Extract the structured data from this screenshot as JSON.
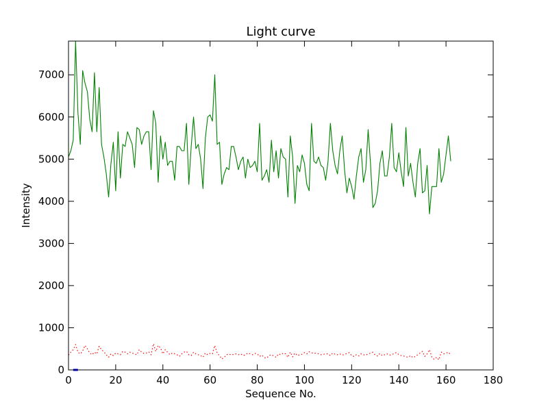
{
  "chart_data": {
    "type": "line",
    "title": "Light curve",
    "xlabel": "Sequence No.",
    "ylabel": "Intensity",
    "xlim": [
      0,
      180
    ],
    "ylim": [
      0,
      7800
    ],
    "xticks": [
      "0",
      "20",
      "40",
      "60",
      "80",
      "100",
      "120",
      "140",
      "160",
      "180"
    ],
    "yticks": [
      "0",
      "1000",
      "2000",
      "3000",
      "4000",
      "5000",
      "6000",
      "7000"
    ],
    "grid": false,
    "legend": "none",
    "series": [
      {
        "color": "#008000",
        "style": "solid",
        "x": [
          0,
          1,
          2,
          3,
          4,
          5,
          6,
          7,
          8,
          9,
          10,
          11,
          12,
          13,
          14,
          15,
          16,
          17,
          18,
          19,
          20,
          21,
          22,
          23,
          24,
          25,
          26,
          27,
          28,
          29,
          30,
          31,
          32,
          33,
          34,
          35,
          36,
          37,
          38,
          39,
          40,
          41,
          42,
          43,
          44,
          45,
          46,
          47,
          48,
          49,
          50,
          51,
          52,
          53,
          54,
          55,
          56,
          57,
          58,
          59,
          60,
          61,
          62,
          63,
          64,
          65,
          66,
          67,
          68,
          69,
          70,
          71,
          72,
          73,
          74,
          75,
          76,
          77,
          78,
          79,
          80,
          81,
          82,
          83,
          84,
          85,
          86,
          87,
          88,
          89,
          90,
          91,
          92,
          93,
          94,
          95,
          96,
          97,
          98,
          99,
          100,
          101,
          102,
          103,
          104,
          105,
          106,
          107,
          108,
          109,
          110,
          111,
          112,
          113,
          114,
          115,
          116,
          117,
          118,
          119,
          120,
          121,
          122,
          123,
          124,
          125,
          126,
          127,
          128,
          129,
          130,
          131,
          132,
          133,
          134,
          135,
          136,
          137,
          138,
          139,
          140,
          141,
          142,
          143,
          144,
          145,
          146,
          147,
          148,
          149,
          150,
          151,
          152,
          153,
          154,
          155,
          156,
          157,
          158,
          159,
          160,
          161,
          162
        ],
        "y": [
          5050,
          5200,
          5450,
          7800,
          6100,
          5350,
          7100,
          6800,
          6600,
          5950,
          5650,
          7050,
          5650,
          6700,
          5350,
          5050,
          4650,
          4100,
          4900,
          5400,
          4250,
          5650,
          4550,
          5350,
          5300,
          5650,
          5500,
          5350,
          4800,
          5750,
          5700,
          5350,
          5550,
          5650,
          5650,
          4750,
          6150,
          5850,
          4450,
          5550,
          5000,
          5400,
          4850,
          4950,
          4950,
          4500,
          5300,
          5300,
          5200,
          5200,
          5850,
          4400,
          5300,
          6000,
          5250,
          5350,
          5000,
          4300,
          5500,
          6000,
          6050,
          5900,
          7000,
          5350,
          5400,
          4400,
          4650,
          4800,
          4750,
          5300,
          5300,
          5050,
          4750,
          4950,
          5050,
          4550,
          5000,
          4800,
          4850,
          4950,
          4700,
          5850,
          4500,
          4600,
          4750,
          4450,
          5450,
          4700,
          5200,
          4550,
          5250,
          5050,
          5000,
          4100,
          5550,
          5050,
          3950,
          4850,
          4700,
          5100,
          4900,
          4400,
          4250,
          5850,
          4950,
          4900,
          5050,
          4850,
          4800,
          4500,
          4950,
          5850,
          5200,
          4850,
          4650,
          5200,
          5550,
          4750,
          4200,
          4550,
          4350,
          4050,
          4600,
          5050,
          5250,
          4450,
          4750,
          5700,
          4900,
          3850,
          3950,
          4250,
          4900,
          5200,
          4600,
          4600,
          5050,
          5850,
          4800,
          4700,
          5150,
          4700,
          4350,
          5750,
          4600,
          4900,
          4450,
          4100,
          4900,
          5250,
          4200,
          4250,
          4850,
          3700,
          4350,
          4350,
          4350,
          5250,
          4450,
          4650,
          5100,
          5550,
          4950
        ]
      },
      {
        "color": "#ff0000",
        "style": "dotted",
        "x": [
          0,
          1,
          2,
          3,
          4,
          5,
          6,
          7,
          8,
          9,
          10,
          11,
          12,
          13,
          14,
          15,
          16,
          17,
          18,
          19,
          20,
          21,
          22,
          23,
          24,
          25,
          26,
          27,
          28,
          29,
          30,
          31,
          32,
          33,
          34,
          35,
          36,
          37,
          38,
          39,
          40,
          41,
          42,
          43,
          44,
          45,
          46,
          47,
          48,
          49,
          50,
          51,
          52,
          53,
          54,
          55,
          56,
          57,
          58,
          59,
          60,
          61,
          62,
          63,
          64,
          65,
          66,
          67,
          68,
          69,
          70,
          71,
          72,
          73,
          74,
          75,
          76,
          77,
          78,
          79,
          80,
          81,
          82,
          83,
          84,
          85,
          86,
          87,
          88,
          89,
          90,
          91,
          92,
          93,
          94,
          95,
          96,
          97,
          98,
          99,
          100,
          101,
          102,
          103,
          104,
          105,
          106,
          107,
          108,
          109,
          110,
          111,
          112,
          113,
          114,
          115,
          116,
          117,
          118,
          119,
          120,
          121,
          122,
          123,
          124,
          125,
          126,
          127,
          128,
          129,
          130,
          131,
          132,
          133,
          134,
          135,
          136,
          137,
          138,
          139,
          140,
          141,
          142,
          143,
          144,
          145,
          146,
          147,
          148,
          149,
          150,
          151,
          152,
          153,
          154,
          155,
          156,
          157,
          158,
          159,
          160,
          161,
          162
        ],
        "y": [
          350,
          420,
          480,
          600,
          420,
          380,
          450,
          580,
          500,
          400,
          360,
          420,
          380,
          560,
          480,
          430,
          360,
          300,
          380,
          340,
          400,
          380,
          360,
          440,
          420,
          380,
          420,
          400,
          380,
          360,
          480,
          420,
          390,
          400,
          430,
          360,
          620,
          440,
          580,
          520,
          380,
          480,
          420,
          360,
          400,
          380,
          360,
          320,
          380,
          420,
          440,
          360,
          340,
          420,
          380,
          360,
          340,
          300,
          400,
          360,
          390,
          380,
          580,
          400,
          340,
          260,
          300,
          360,
          380,
          350,
          370,
          380,
          360,
          380,
          340,
          360,
          400,
          380,
          360,
          390,
          380,
          320,
          350,
          290,
          280,
          340,
          360,
          330,
          300,
          380,
          360,
          400,
          380,
          300,
          420,
          310,
          400,
          340,
          360,
          370,
          410,
          380,
          430,
          410,
          390,
          400,
          380,
          360,
          370,
          380,
          380,
          340,
          400,
          370,
          360,
          380,
          350,
          370,
          390,
          410,
          340,
          320,
          360,
          330,
          380,
          360,
          350,
          380,
          400,
          420,
          350,
          330,
          390,
          340,
          360,
          380,
          350,
          360,
          390,
          410,
          360,
          340,
          330,
          310,
          300,
          340,
          290,
          320,
          360,
          400,
          440,
          320,
          380,
          480,
          300,
          250,
          300,
          240,
          420,
          380,
          400,
          420,
          360
        ]
      },
      {
        "color": "#0000ff",
        "style": "solid",
        "x": [
          2,
          3,
          4
        ],
        "y": [
          0,
          0,
          0
        ]
      }
    ]
  }
}
